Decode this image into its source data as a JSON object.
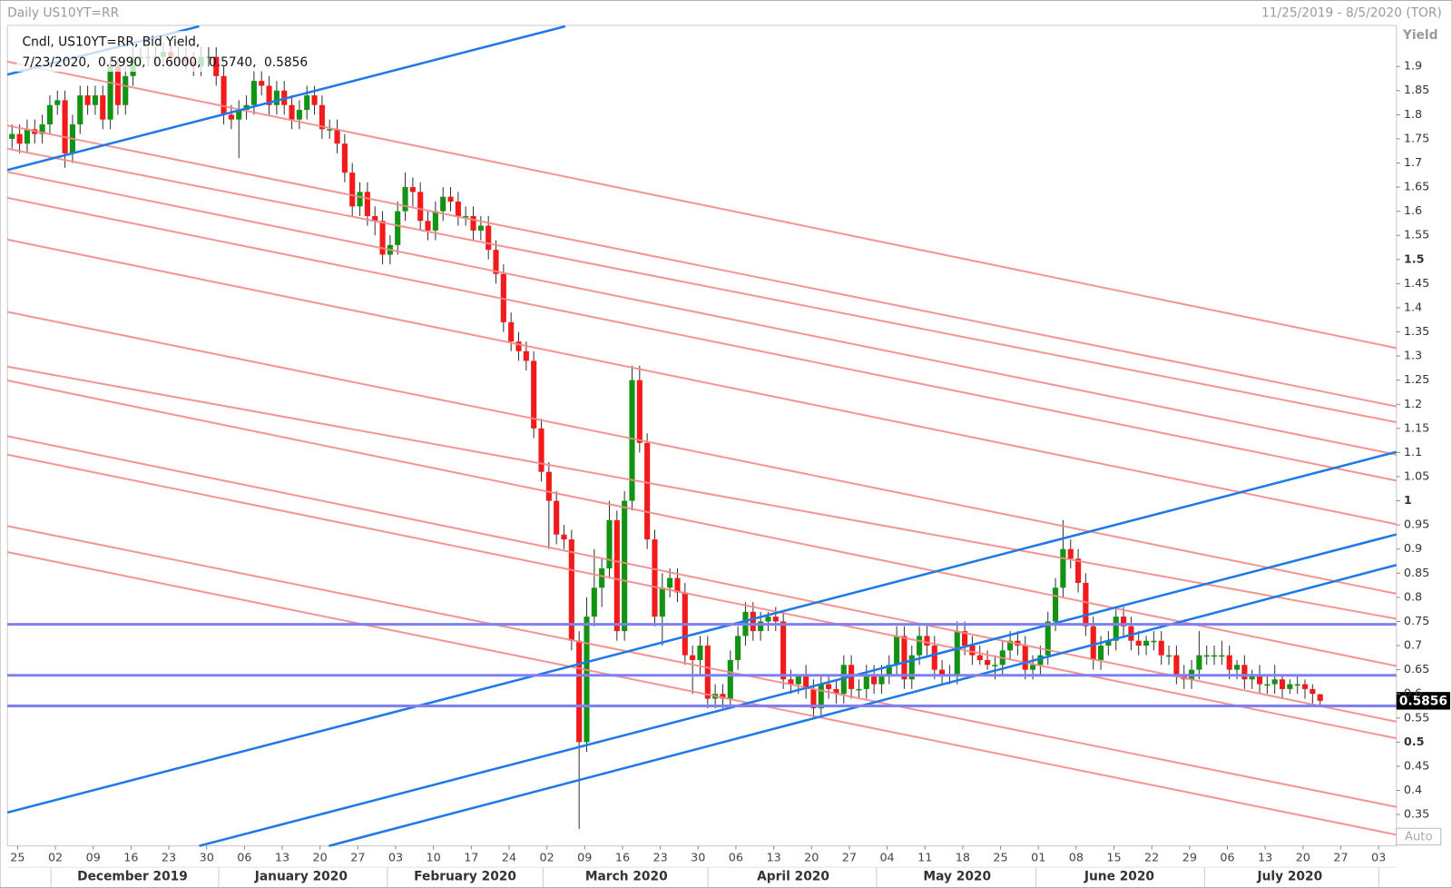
{
  "header": {
    "title": "Daily US10YT=RR",
    "range": "11/25/2019 - 8/5/2020 (TOR)"
  },
  "chart_data": {
    "type": "candlestick",
    "legend_line": "Cndl, US10YT=RR, Bid Yield,",
    "legend_date": "7/23/2020,",
    "last_labels": [
      "0.5990,",
      "0.6000,",
      "0.5740,",
      "0.5856"
    ],
    "y_axis_label": "Yield",
    "auto_label": "Auto",
    "up_color": "#139313",
    "down_color": "#f21a1a",
    "ylim": [
      0.285,
      1.985
    ],
    "yticks": [
      1.9,
      1.85,
      1.8,
      1.75,
      1.7,
      1.65,
      1.6,
      1.55,
      1.5,
      1.45,
      1.4,
      1.35,
      1.3,
      1.25,
      1.2,
      1.15,
      1.1,
      1.05,
      1,
      0.95,
      0.9,
      0.85,
      0.8,
      0.75,
      0.7,
      0.65,
      0.6,
      0.55,
      0.5,
      0.45,
      0.4,
      0.35
    ],
    "week_labels": [
      "25",
      "02",
      "09",
      "16",
      "23",
      "30",
      "06",
      "13",
      "20",
      "27",
      "03",
      "10",
      "17",
      "24",
      "02",
      "09",
      "16",
      "23",
      "30",
      "06",
      "13",
      "20",
      "27",
      "04",
      "11",
      "18",
      "25",
      "01",
      "08",
      "15",
      "22",
      "29",
      "06",
      "13",
      "20",
      "27",
      "03"
    ],
    "month_labels": [
      "December 2019",
      "January 2020",
      "February 2020",
      "March 2020",
      "April 2020",
      "May 2020",
      "June 2020",
      "July 2020"
    ],
    "open": [
      1.75,
      1.76,
      1.74,
      1.77,
      1.76,
      1.78,
      1.82,
      1.83,
      1.72,
      1.78,
      1.84,
      1.82,
      1.84,
      1.79,
      1.9,
      1.82,
      1.88,
      1.92,
      1.92,
      1.92,
      1.92,
      1.93,
      1.92,
      1.92,
      1.91,
      1.9,
      1.92,
      1.92,
      1.88,
      1.8,
      1.79,
      1.81,
      1.82,
      1.87,
      1.86,
      1.82,
      1.85,
      1.82,
      1.79,
      1.81,
      1.84,
      1.82,
      1.77,
      1.77,
      1.74,
      1.68,
      1.61,
      1.64,
      1.59,
      1.58,
      1.51,
      1.53,
      1.6,
      1.65,
      1.64,
      1.58,
      1.56,
      1.6,
      1.63,
      1.62,
      1.59,
      1.59,
      1.56,
      1.57,
      1.52,
      1.47,
      1.37,
      1.33,
      1.31,
      1.29,
      1.15,
      1.06,
      1.0,
      0.93,
      0.92,
      0.71,
      0.5,
      0.76,
      0.82,
      0.86,
      0.96,
      0.73,
      1.0,
      1.25,
      1.12,
      0.92,
      0.76,
      0.82,
      0.84,
      0.81,
      0.68,
      0.67,
      0.7,
      0.59,
      0.6,
      0.59,
      0.67,
      0.72,
      0.77,
      0.73,
      0.75,
      0.76,
      0.75,
      0.63,
      0.62,
      0.64,
      0.61,
      0.57,
      0.62,
      0.61,
      0.6,
      0.66,
      0.61,
      0.61,
      0.64,
      0.62,
      0.64,
      0.66,
      0.72,
      0.63,
      0.68,
      0.72,
      0.7,
      0.65,
      0.64,
      0.64,
      0.73,
      0.7,
      0.68,
      0.67,
      0.66,
      0.66,
      0.69,
      0.71,
      0.7,
      0.65,
      0.66,
      0.68,
      0.75,
      0.82,
      0.9,
      0.88,
      0.83,
      0.74,
      0.67,
      0.7,
      0.71,
      0.76,
      0.74,
      0.71,
      0.7,
      0.71,
      0.71,
      0.68,
      0.68,
      0.64,
      0.63,
      0.65,
      0.68,
      0.68,
      0.68,
      0.68,
      0.65,
      0.66,
      0.63,
      0.64,
      0.62,
      0.62,
      0.63,
      0.61,
      0.62,
      0.62,
      0.61,
      0.599
    ],
    "high": [
      1.78,
      1.78,
      1.79,
      1.79,
      1.8,
      1.84,
      1.85,
      1.85,
      1.8,
      1.86,
      1.86,
      1.86,
      1.86,
      1.92,
      1.92,
      1.9,
      1.94,
      1.94,
      1.94,
      1.94,
      1.95,
      1.95,
      1.94,
      1.94,
      1.93,
      1.94,
      1.94,
      1.94,
      1.9,
      1.82,
      1.83,
      1.84,
      1.89,
      1.89,
      1.88,
      1.87,
      1.87,
      1.84,
      1.83,
      1.86,
      1.86,
      1.84,
      1.79,
      1.79,
      1.76,
      1.7,
      1.66,
      1.66,
      1.61,
      1.6,
      1.55,
      1.62,
      1.68,
      1.67,
      1.66,
      1.6,
      1.62,
      1.65,
      1.65,
      1.64,
      1.61,
      1.61,
      1.59,
      1.59,
      1.54,
      1.49,
      1.39,
      1.35,
      1.33,
      1.31,
      1.17,
      1.08,
      1.02,
      0.95,
      0.94,
      0.73,
      0.8,
      0.9,
      0.88,
      1.0,
      0.98,
      1.02,
      1.28,
      1.28,
      1.14,
      0.94,
      0.85,
      0.86,
      0.86,
      0.83,
      0.7,
      0.72,
      0.72,
      0.62,
      0.62,
      0.69,
      0.74,
      0.79,
      0.79,
      0.77,
      0.77,
      0.78,
      0.77,
      0.65,
      0.64,
      0.66,
      0.63,
      0.64,
      0.64,
      0.63,
      0.68,
      0.68,
      0.63,
      0.66,
      0.66,
      0.66,
      0.68,
      0.74,
      0.74,
      0.7,
      0.74,
      0.74,
      0.72,
      0.67,
      0.66,
      0.75,
      0.75,
      0.72,
      0.7,
      0.69,
      0.68,
      0.71,
      0.73,
      0.73,
      0.72,
      0.68,
      0.7,
      0.77,
      0.84,
      0.96,
      0.92,
      0.9,
      0.85,
      0.76,
      0.72,
      0.73,
      0.78,
      0.78,
      0.76,
      0.73,
      0.72,
      0.73,
      0.73,
      0.7,
      0.7,
      0.66,
      0.67,
      0.73,
      0.7,
      0.7,
      0.71,
      0.7,
      0.67,
      0.68,
      0.65,
      0.66,
      0.64,
      0.66,
      0.64,
      0.63,
      0.64,
      0.63,
      0.62,
      0.6
    ],
    "low": [
      1.73,
      1.72,
      1.72,
      1.74,
      1.74,
      1.76,
      1.8,
      1.69,
      1.7,
      1.76,
      1.8,
      1.8,
      1.77,
      1.77,
      1.8,
      1.8,
      1.86,
      1.9,
      1.9,
      1.9,
      1.9,
      1.9,
      1.9,
      1.89,
      1.88,
      1.88,
      1.9,
      1.86,
      1.78,
      1.77,
      1.71,
      1.79,
      1.8,
      1.84,
      1.8,
      1.8,
      1.8,
      1.77,
      1.77,
      1.79,
      1.8,
      1.75,
      1.75,
      1.72,
      1.66,
      1.59,
      1.59,
      1.57,
      1.55,
      1.49,
      1.49,
      1.51,
      1.58,
      1.61,
      1.56,
      1.54,
      1.54,
      1.58,
      1.6,
      1.57,
      1.57,
      1.54,
      1.54,
      1.5,
      1.45,
      1.35,
      1.31,
      1.29,
      1.27,
      1.13,
      1.04,
      0.9,
      0.91,
      0.9,
      0.69,
      0.32,
      0.48,
      0.74,
      0.78,
      0.84,
      0.71,
      0.71,
      0.98,
      1.1,
      0.9,
      0.74,
      0.7,
      0.8,
      0.79,
      0.66,
      0.6,
      0.64,
      0.57,
      0.57,
      0.57,
      0.57,
      0.65,
      0.7,
      0.71,
      0.71,
      0.73,
      0.73,
      0.61,
      0.6,
      0.6,
      0.59,
      0.55,
      0.55,
      0.59,
      0.58,
      0.58,
      0.59,
      0.59,
      0.59,
      0.6,
      0.6,
      0.62,
      0.64,
      0.61,
      0.61,
      0.66,
      0.68,
      0.63,
      0.62,
      0.62,
      0.62,
      0.68,
      0.66,
      0.66,
      0.65,
      0.63,
      0.64,
      0.67,
      0.68,
      0.63,
      0.63,
      0.64,
      0.66,
      0.73,
      0.8,
      0.86,
      0.81,
      0.72,
      0.65,
      0.65,
      0.68,
      0.69,
      0.72,
      0.69,
      0.68,
      0.68,
      0.69,
      0.66,
      0.66,
      0.62,
      0.61,
      0.61,
      0.63,
      0.66,
      0.66,
      0.66,
      0.63,
      0.63,
      0.61,
      0.61,
      0.6,
      0.6,
      0.6,
      0.59,
      0.6,
      0.6,
      0.59,
      0.58,
      0.574
    ],
    "close": [
      1.76,
      1.74,
      1.77,
      1.76,
      1.78,
      1.82,
      1.83,
      1.72,
      1.78,
      1.84,
      1.82,
      1.84,
      1.79,
      1.9,
      1.82,
      1.88,
      1.92,
      1.92,
      1.92,
      1.92,
      1.93,
      1.92,
      1.92,
      1.91,
      1.9,
      1.92,
      1.92,
      1.88,
      1.8,
      1.79,
      1.81,
      1.82,
      1.87,
      1.86,
      1.82,
      1.85,
      1.82,
      1.79,
      1.81,
      1.84,
      1.82,
      1.77,
      1.77,
      1.74,
      1.68,
      1.61,
      1.64,
      1.59,
      1.58,
      1.51,
      1.53,
      1.6,
      1.65,
      1.64,
      1.58,
      1.56,
      1.6,
      1.63,
      1.62,
      1.59,
      1.59,
      1.56,
      1.57,
      1.52,
      1.47,
      1.37,
      1.33,
      1.31,
      1.29,
      1.15,
      1.06,
      1.0,
      0.93,
      0.92,
      0.71,
      0.5,
      0.76,
      0.82,
      0.86,
      0.96,
      0.73,
      1.0,
      1.25,
      1.12,
      0.92,
      0.76,
      0.82,
      0.84,
      0.81,
      0.68,
      0.67,
      0.7,
      0.59,
      0.6,
      0.59,
      0.67,
      0.72,
      0.77,
      0.73,
      0.75,
      0.76,
      0.75,
      0.63,
      0.62,
      0.64,
      0.61,
      0.57,
      0.62,
      0.61,
      0.6,
      0.66,
      0.61,
      0.61,
      0.64,
      0.62,
      0.64,
      0.66,
      0.72,
      0.63,
      0.68,
      0.72,
      0.7,
      0.65,
      0.64,
      0.64,
      0.73,
      0.7,
      0.68,
      0.67,
      0.66,
      0.66,
      0.69,
      0.71,
      0.7,
      0.65,
      0.66,
      0.68,
      0.75,
      0.82,
      0.9,
      0.88,
      0.83,
      0.74,
      0.67,
      0.7,
      0.71,
      0.76,
      0.74,
      0.71,
      0.7,
      0.71,
      0.71,
      0.68,
      0.68,
      0.64,
      0.63,
      0.65,
      0.68,
      0.68,
      0.68,
      0.68,
      0.65,
      0.66,
      0.63,
      0.64,
      0.62,
      0.62,
      0.63,
      0.61,
      0.62,
      0.62,
      0.61,
      0.6,
      0.5856
    ]
  }
}
